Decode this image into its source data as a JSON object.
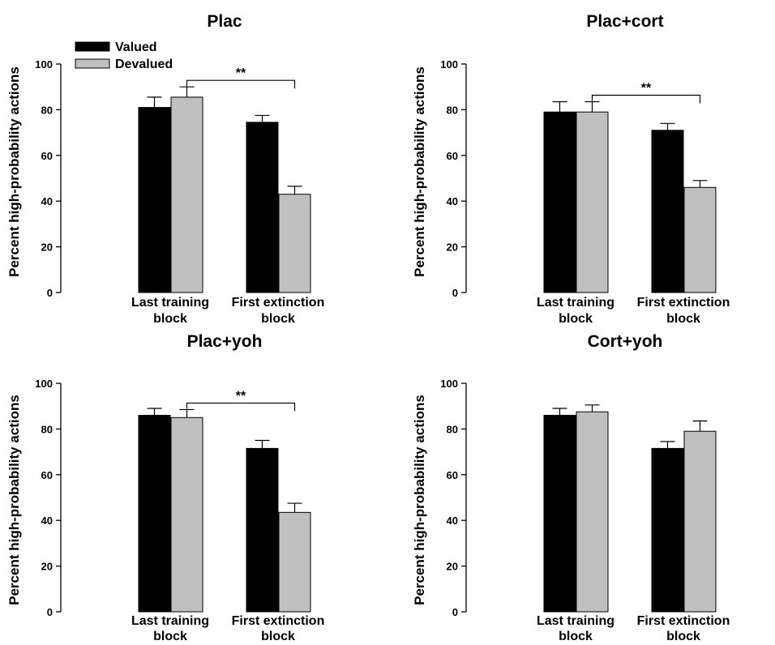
{
  "figure": {
    "legend": {
      "entries": [
        {
          "label": "Valued",
          "color": "#000000"
        },
        {
          "label": "Devalued",
          "color": "#c0c0c0"
        }
      ],
      "placement": "top-left of first panel"
    }
  },
  "chart_data": [
    {
      "type": "bar",
      "title": "Plac",
      "ylabel": "Percent high-probability actions",
      "xlabel": "",
      "ylim": [
        0,
        100
      ],
      "yticks": [
        0,
        20,
        40,
        60,
        80,
        100
      ],
      "categories": [
        [
          "Last training",
          "block"
        ],
        [
          "First extinction",
          "block"
        ]
      ],
      "series": [
        {
          "name": "Valued",
          "color": "#000000",
          "values": [
            81,
            74.5
          ],
          "errors": [
            4.5,
            3
          ]
        },
        {
          "name": "Devalued",
          "color": "#c0c0c0",
          "values": [
            85.5,
            43
          ],
          "errors": [
            4.5,
            3.5
          ]
        }
      ],
      "significance": {
        "label": "**",
        "from_category": 0,
        "from_series": 1,
        "to_category": 1,
        "to_series": 1
      },
      "legend_shown": true
    },
    {
      "type": "bar",
      "title": "Plac+cort",
      "ylabel": "Percent high-probability actions",
      "xlabel": "",
      "ylim": [
        0,
        100
      ],
      "yticks": [
        0,
        20,
        40,
        60,
        80,
        100
      ],
      "categories": [
        [
          "Last training",
          "block"
        ],
        [
          "First extinction",
          "block"
        ]
      ],
      "series": [
        {
          "name": "Valued",
          "color": "#000000",
          "values": [
            79,
            71
          ],
          "errors": [
            4.5,
            3
          ]
        },
        {
          "name": "Devalued",
          "color": "#c0c0c0",
          "values": [
            79,
            46
          ],
          "errors": [
            4.5,
            3
          ]
        }
      ],
      "significance": {
        "label": "**",
        "from_category": 0,
        "from_series": 1,
        "to_category": 1,
        "to_series": 1
      },
      "legend_shown": false
    },
    {
      "type": "bar",
      "title": "Plac+yoh",
      "ylabel": "Percent high-probability actions",
      "xlabel": "",
      "ylim": [
        0,
        100
      ],
      "yticks": [
        0,
        20,
        40,
        60,
        80,
        100
      ],
      "categories": [
        [
          "Last training",
          "block"
        ],
        [
          "First extinction",
          "block"
        ]
      ],
      "series": [
        {
          "name": "Valued",
          "color": "#000000",
          "values": [
            86,
            71.5
          ],
          "errors": [
            3,
            3.5
          ]
        },
        {
          "name": "Devalued",
          "color": "#c0c0c0",
          "values": [
            85,
            43.5
          ],
          "errors": [
            3.5,
            4
          ]
        }
      ],
      "significance": {
        "label": "**",
        "from_category": 0,
        "from_series": 1,
        "to_category": 1,
        "to_series": 1
      },
      "legend_shown": false
    },
    {
      "type": "bar",
      "title": "Cort+yoh",
      "ylabel": "Percent high-probability actions",
      "xlabel": "",
      "ylim": [
        0,
        100
      ],
      "yticks": [
        0,
        20,
        40,
        60,
        80,
        100
      ],
      "categories": [
        [
          "Last training",
          "block"
        ],
        [
          "First extinction",
          "block"
        ]
      ],
      "series": [
        {
          "name": "Valued",
          "color": "#000000",
          "values": [
            86,
            71.5
          ],
          "errors": [
            3,
            3
          ]
        },
        {
          "name": "Devalued",
          "color": "#c0c0c0",
          "values": [
            87.5,
            79
          ],
          "errors": [
            3,
            4.5
          ]
        }
      ],
      "significance": null,
      "legend_shown": false
    }
  ]
}
